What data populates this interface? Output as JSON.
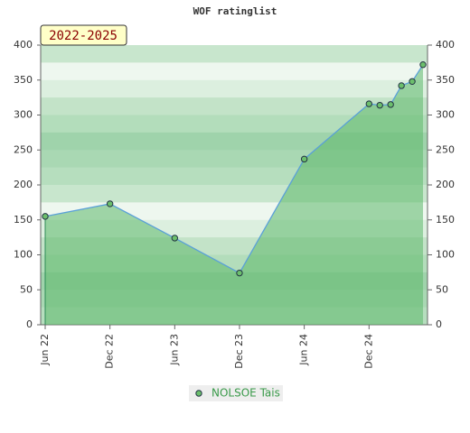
{
  "chart_data": {
    "type": "line",
    "title": "WOF ratinglist",
    "annotation": "2022-2025",
    "x": [
      "2022-06",
      "2022-12",
      "2023-06",
      "2023-12",
      "2024-06",
      "2024-12",
      "2025-01",
      "2025-02",
      "2025-03",
      "2025-04",
      "2025-05"
    ],
    "series": [
      {
        "name": "NOLSOE Tais",
        "color": "#5aa0d8",
        "marker_color": "#6cbf6c",
        "values": [
          155,
          173,
          124,
          74,
          237,
          316,
          314,
          315,
          342,
          348,
          372
        ]
      }
    ],
    "xlim": [
      "2022-06",
      "2025-05"
    ],
    "xticks": [
      {
        "value": "2022-06",
        "label": "Jun 22"
      },
      {
        "value": "2022-12",
        "label": "Dec 22"
      },
      {
        "value": "2023-06",
        "label": "Jun 23"
      },
      {
        "value": "2023-12",
        "label": "Dec 23"
      },
      {
        "value": "2024-06",
        "label": "Jun 24"
      },
      {
        "value": "2024-12",
        "label": "Dec 24"
      }
    ],
    "ylim": [
      0,
      400
    ],
    "yticks": [
      0,
      50,
      100,
      150,
      200,
      250,
      300,
      350,
      400
    ],
    "y2lim": [
      0,
      400
    ],
    "y2ticks": [
      0,
      50,
      100,
      150,
      200,
      250,
      300,
      350,
      400
    ],
    "legend": "bottom",
    "area_color": "#5cb86a"
  }
}
